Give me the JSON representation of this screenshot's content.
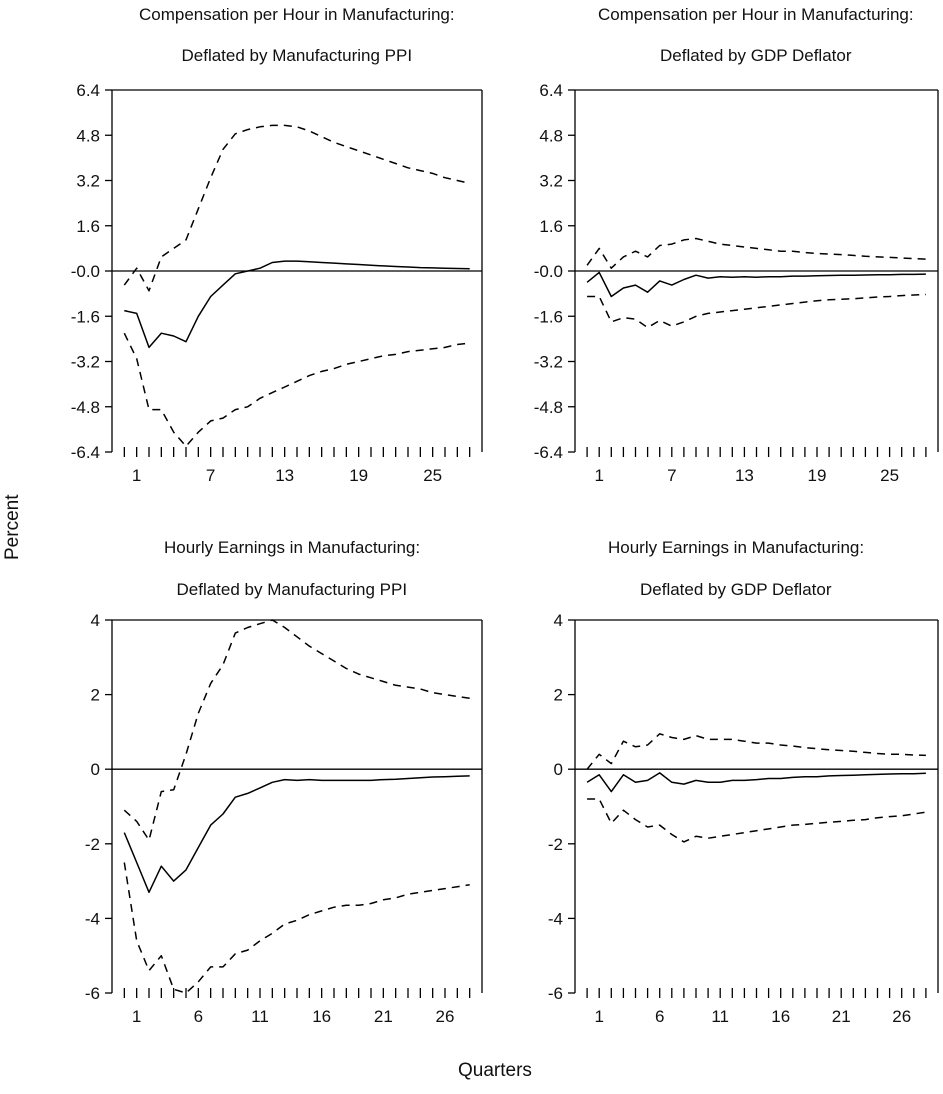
{
  "figure": {
    "y_axis_label": "Percent",
    "x_axis_label": "Quarters"
  },
  "chart_data": [
    {
      "type": "line",
      "title": "Compensation per Hour in Manufacturing:",
      "subtitle": "Deflated by Manufacturing PPI",
      "ylim": [
        -6.4,
        6.4
      ],
      "yticks": [
        "6.4",
        "4.8",
        "3.2",
        "1.6",
        "-0.0",
        "-1.6",
        "-3.2",
        "-4.8",
        "-6.4"
      ],
      "xlim": [
        -1,
        29
      ],
      "xticks": [
        "1",
        "7",
        "13",
        "19",
        "25"
      ],
      "x": [
        0,
        1,
        2,
        3,
        4,
        5,
        6,
        7,
        8,
        9,
        10,
        11,
        12,
        13,
        14,
        15,
        16,
        17,
        18,
        19,
        20,
        21,
        22,
        23,
        24,
        25,
        26,
        27,
        28
      ],
      "series": [
        {
          "style": "solid",
          "values": [
            -1.4,
            -1.5,
            -2.7,
            -2.2,
            -2.3,
            -2.5,
            -1.6,
            -0.9,
            -0.5,
            -0.1,
            0.0,
            0.1,
            0.3,
            0.35,
            0.35,
            0.33,
            0.3,
            0.28,
            0.25,
            0.23,
            0.2,
            0.18,
            0.16,
            0.14,
            0.12,
            0.11,
            0.1,
            0.09,
            0.08
          ]
        },
        {
          "style": "dashed",
          "values": [
            -0.5,
            0.1,
            -0.7,
            0.5,
            0.8,
            1.1,
            2.2,
            3.3,
            4.3,
            4.85,
            5.0,
            5.1,
            5.15,
            5.15,
            5.1,
            4.95,
            4.75,
            4.55,
            4.4,
            4.25,
            4.1,
            3.95,
            3.8,
            3.65,
            3.55,
            3.45,
            3.3,
            3.2,
            3.1
          ]
        },
        {
          "style": "dashed",
          "values": [
            -2.2,
            -3.1,
            -4.9,
            -4.9,
            -5.7,
            -6.2,
            -5.7,
            -5.3,
            -5.2,
            -4.9,
            -4.8,
            -4.5,
            -4.3,
            -4.1,
            -3.9,
            -3.7,
            -3.55,
            -3.45,
            -3.3,
            -3.2,
            -3.1,
            -3.0,
            -2.95,
            -2.85,
            -2.8,
            -2.75,
            -2.7,
            -2.6,
            -2.55
          ]
        }
      ]
    },
    {
      "type": "line",
      "title": "Compensation per Hour in Manufacturing:",
      "subtitle": "Deflated by GDP Deflator",
      "ylim": [
        -6.4,
        6.4
      ],
      "yticks": [
        "6.4",
        "4.8",
        "3.2",
        "1.6",
        "-0.0",
        "-1.6",
        "-3.2",
        "-4.8",
        "-6.4"
      ],
      "xlim": [
        -1,
        29
      ],
      "xticks": [
        "1",
        "7",
        "13",
        "19",
        "25"
      ],
      "x": [
        0,
        1,
        2,
        3,
        4,
        5,
        6,
        7,
        8,
        9,
        10,
        11,
        12,
        13,
        14,
        15,
        16,
        17,
        18,
        19,
        20,
        21,
        22,
        23,
        24,
        25,
        26,
        27,
        28
      ],
      "series": [
        {
          "style": "solid",
          "values": [
            -0.4,
            -0.05,
            -0.9,
            -0.6,
            -0.5,
            -0.75,
            -0.35,
            -0.5,
            -0.3,
            -0.15,
            -0.25,
            -0.2,
            -0.22,
            -0.2,
            -0.22,
            -0.2,
            -0.2,
            -0.18,
            -0.18,
            -0.17,
            -0.16,
            -0.15,
            -0.15,
            -0.14,
            -0.13,
            -0.13,
            -0.12,
            -0.12,
            -0.11
          ]
        },
        {
          "style": "dashed",
          "values": [
            0.2,
            0.8,
            0.1,
            0.5,
            0.7,
            0.5,
            0.9,
            0.95,
            1.1,
            1.15,
            1.05,
            0.95,
            0.9,
            0.85,
            0.8,
            0.75,
            0.7,
            0.7,
            0.65,
            0.62,
            0.6,
            0.58,
            0.55,
            0.52,
            0.5,
            0.48,
            0.46,
            0.44,
            0.42
          ]
        },
        {
          "style": "dashed",
          "values": [
            -0.9,
            -0.9,
            -1.8,
            -1.65,
            -1.7,
            -2.0,
            -1.75,
            -1.95,
            -1.8,
            -1.6,
            -1.5,
            -1.45,
            -1.4,
            -1.35,
            -1.3,
            -1.25,
            -1.2,
            -1.15,
            -1.1,
            -1.05,
            -1.02,
            -1.0,
            -0.98,
            -0.95,
            -0.92,
            -0.9,
            -0.87,
            -0.85,
            -0.83
          ]
        }
      ]
    },
    {
      "type": "line",
      "title": "Hourly Earnings in Manufacturing:",
      "subtitle": "Deflated by Manufacturing PPI",
      "ylim": [
        -6,
        4
      ],
      "yticks": [
        "4",
        "2",
        "0",
        "-2",
        "-4",
        "-6"
      ],
      "xlim": [
        -1,
        29
      ],
      "xticks": [
        "1",
        "6",
        "11",
        "16",
        "21",
        "26"
      ],
      "x": [
        0,
        1,
        2,
        3,
        4,
        5,
        6,
        7,
        8,
        9,
        10,
        11,
        12,
        13,
        14,
        15,
        16,
        17,
        18,
        19,
        20,
        21,
        22,
        23,
        24,
        25,
        26,
        27,
        28
      ],
      "series": [
        {
          "style": "solid",
          "values": [
            -1.7,
            -2.5,
            -3.3,
            -2.6,
            -3.0,
            -2.7,
            -2.1,
            -1.5,
            -1.2,
            -0.75,
            -0.65,
            -0.5,
            -0.35,
            -0.28,
            -0.3,
            -0.28,
            -0.3,
            -0.3,
            -0.3,
            -0.3,
            -0.3,
            -0.28,
            -0.27,
            -0.25,
            -0.23,
            -0.21,
            -0.2,
            -0.19,
            -0.18
          ]
        },
        {
          "style": "dashed",
          "values": [
            -1.1,
            -1.4,
            -1.9,
            -0.6,
            -0.55,
            0.4,
            1.5,
            2.3,
            2.8,
            3.65,
            3.8,
            3.9,
            4.0,
            3.8,
            3.55,
            3.3,
            3.1,
            2.9,
            2.7,
            2.55,
            2.45,
            2.35,
            2.25,
            2.2,
            2.15,
            2.05,
            2.0,
            1.95,
            1.9
          ]
        },
        {
          "style": "dashed",
          "values": [
            -2.5,
            -4.6,
            -5.4,
            -5.0,
            -5.9,
            -6.0,
            -5.7,
            -5.3,
            -5.3,
            -4.95,
            -4.85,
            -4.6,
            -4.4,
            -4.15,
            -4.05,
            -3.9,
            -3.8,
            -3.7,
            -3.65,
            -3.65,
            -3.6,
            -3.5,
            -3.45,
            -3.35,
            -3.3,
            -3.25,
            -3.2,
            -3.15,
            -3.1
          ]
        }
      ]
    },
    {
      "type": "line",
      "title": "Hourly Earnings in Manufacturing:",
      "subtitle": "Deflated by GDP Deflator",
      "ylim": [
        -6,
        4
      ],
      "yticks": [
        "4",
        "2",
        "0",
        "-2",
        "-4",
        "-6"
      ],
      "xlim": [
        -1,
        29
      ],
      "xticks": [
        "1",
        "6",
        "11",
        "16",
        "21",
        "26"
      ],
      "x": [
        0,
        1,
        2,
        3,
        4,
        5,
        6,
        7,
        8,
        9,
        10,
        11,
        12,
        13,
        14,
        15,
        16,
        17,
        18,
        19,
        20,
        21,
        22,
        23,
        24,
        25,
        26,
        27,
        28
      ],
      "series": [
        {
          "style": "solid",
          "values": [
            -0.35,
            -0.15,
            -0.6,
            -0.15,
            -0.35,
            -0.3,
            -0.1,
            -0.35,
            -0.4,
            -0.3,
            -0.35,
            -0.35,
            -0.3,
            -0.3,
            -0.28,
            -0.25,
            -0.25,
            -0.22,
            -0.2,
            -0.2,
            -0.18,
            -0.17,
            -0.16,
            -0.15,
            -0.14,
            -0.13,
            -0.12,
            -0.12,
            -0.11
          ]
        },
        {
          "style": "dashed",
          "values": [
            0.0,
            0.4,
            0.15,
            0.75,
            0.6,
            0.65,
            0.95,
            0.85,
            0.8,
            0.9,
            0.8,
            0.8,
            0.8,
            0.75,
            0.7,
            0.7,
            0.65,
            0.62,
            0.58,
            0.55,
            0.52,
            0.5,
            0.48,
            0.45,
            0.42,
            0.4,
            0.4,
            0.38,
            0.37
          ]
        },
        {
          "style": "dashed",
          "values": [
            -0.8,
            -0.8,
            -1.45,
            -1.1,
            -1.35,
            -1.55,
            -1.5,
            -1.75,
            -1.95,
            -1.8,
            -1.85,
            -1.8,
            -1.75,
            -1.7,
            -1.65,
            -1.6,
            -1.55,
            -1.5,
            -1.48,
            -1.45,
            -1.42,
            -1.4,
            -1.37,
            -1.35,
            -1.3,
            -1.27,
            -1.25,
            -1.2,
            -1.15
          ]
        }
      ]
    }
  ]
}
